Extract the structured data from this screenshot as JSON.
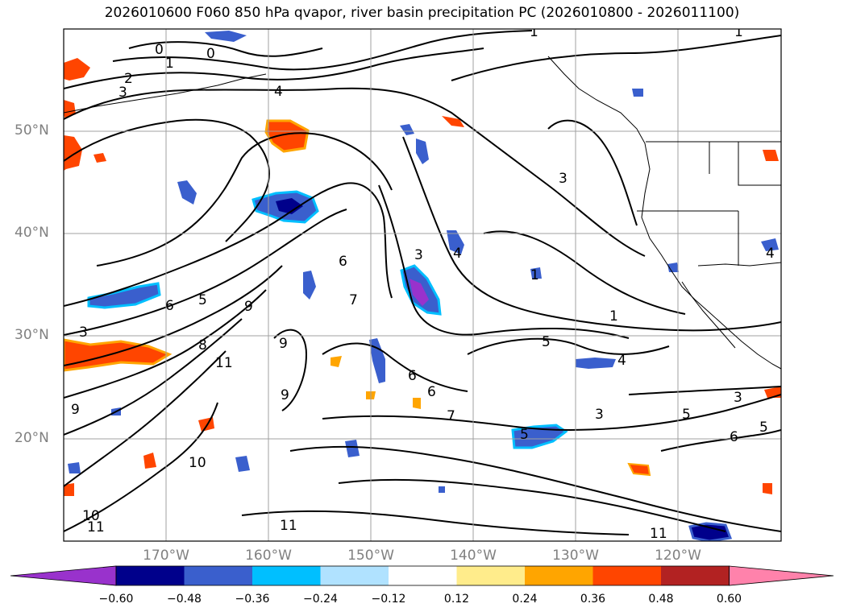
{
  "title": "2026010600 F060 850 hPa qvapor, river basin precipitation PC (2026010800 - 2026011100)",
  "map": {
    "projection": "PlateCarree",
    "extent": {
      "lon_min": -180,
      "lon_max": -110,
      "lat_min": 10,
      "lat_max": 60
    },
    "grid": true,
    "lat_labels": [
      "50°N",
      "40°N",
      "30°N",
      "20°N"
    ],
    "lon_labels": [
      "170°W",
      "160°W",
      "150°W",
      "140°W",
      "130°W",
      "120°W"
    ],
    "overlays": [
      "coastlines",
      "country borders",
      "state borders"
    ]
  },
  "colorbar": {
    "orientation": "horizontal",
    "extend": "both",
    "levels": [
      -0.6,
      -0.48,
      -0.36,
      -0.24,
      -0.12,
      0.12,
      0.24,
      0.36,
      0.48,
      0.6
    ],
    "tick_labels": [
      "−0.60",
      "−0.48",
      "−0.36",
      "−0.24",
      "−0.12",
      "0.12",
      "0.24",
      "0.36",
      "0.48",
      "0.60"
    ],
    "colors": [
      "#9932cc",
      "#00008b",
      "#3a5fcd",
      "#00bfff",
      "#b0e2ff",
      "#ffffff",
      "#ffec8b",
      "#ffa500",
      "#ff4500",
      "#b22222",
      "#ff82ab"
    ]
  },
  "contour_labels": [
    "0",
    "0",
    "1",
    "1",
    "2",
    "3",
    "4",
    "1",
    "3",
    "1",
    "1",
    "3",
    "3",
    "4",
    "6",
    "7",
    "6",
    "5",
    "5",
    "6",
    "6",
    "7",
    "9",
    "8",
    "9",
    "9",
    "9",
    "11",
    "10",
    "10",
    "11",
    "11",
    "11",
    "5",
    "3",
    "3",
    "5",
    "6",
    "5",
    "4",
    "4"
  ],
  "chart_data": {
    "type": "contour+filled",
    "variable_contours": "850 hPa qvapor",
    "filled_variable": "river basin precipitation PC",
    "contour_levels_shown": [
      0,
      1,
      2,
      3,
      4,
      5,
      6,
      7,
      8,
      9,
      10,
      11
    ],
    "shading_levels": [
      -0.6,
      -0.48,
      -0.36,
      -0.24,
      -0.12,
      0.12,
      0.24,
      0.36,
      0.48,
      0.6
    ]
  }
}
